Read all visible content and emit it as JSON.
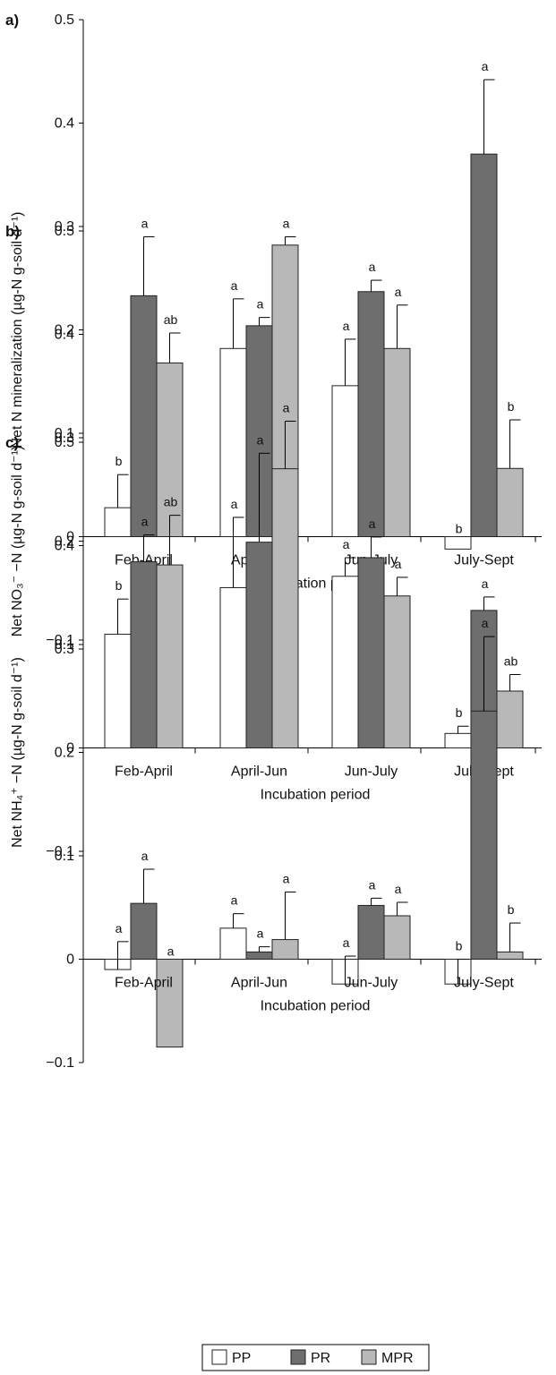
{
  "legend": {
    "items": [
      {
        "name": "PP",
        "color": "#ffffff"
      },
      {
        "name": "PR",
        "color": "#6e6e6e"
      },
      {
        "name": "MPR",
        "color": "#b8b8b8"
      }
    ]
  },
  "chart_data": [
    {
      "type": "bar",
      "panel": "a)",
      "xlabel": "Incubation period",
      "ylabel": "Net N mineralization (µg-N g-soil d⁻¹)",
      "ylim": [
        -0.1,
        0.5
      ],
      "yticks": [
        "0.5",
        "0.4",
        "0.3",
        "0.2",
        "0.1",
        "0",
        "−0.1"
      ],
      "categories": [
        "Feb-April",
        "April-Jun",
        "Jun-July",
        "July-Sept"
      ],
      "series": [
        {
          "name": "PP",
          "values": [
            0.028,
            0.182,
            0.146,
            -0.012
          ],
          "errors": [
            0.032,
            0.048,
            0.045,
            0
          ],
          "letters": [
            "b",
            "a",
            "a",
            "b"
          ]
        },
        {
          "name": "PR",
          "values": [
            0.233,
            0.204,
            0.237,
            0.37
          ],
          "errors": [
            0.057,
            0.008,
            0.011,
            0.072
          ],
          "letters": [
            "a",
            "a",
            "a",
            "a"
          ]
        },
        {
          "name": "MPR",
          "values": [
            0.168,
            0.282,
            0.182,
            0.066
          ],
          "errors": [
            0.029,
            0.008,
            0.042,
            0.047
          ],
          "letters": [
            "ab",
            "a",
            "a",
            "b"
          ]
        }
      ]
    },
    {
      "type": "bar",
      "panel": "b)",
      "xlabel": "Incubation period",
      "ylabel": "Net NO₃⁻ −N (µg-N g-soil d⁻¹)",
      "ylim": [
        -0.1,
        0.5
      ],
      "yticks": [
        "0.5",
        "0.4",
        "0.3",
        "0.2",
        "0.1",
        "0",
        "−0.1"
      ],
      "categories": [
        "Feb-April",
        "April-Jun",
        "Jun-July",
        "July-Sept"
      ],
      "series": [
        {
          "name": "PP",
          "values": [
            0.11,
            0.155,
            0.166,
            0.014
          ],
          "errors": [
            0.034,
            0.068,
            0.018,
            0.007
          ],
          "letters": [
            "b",
            "a",
            "a",
            "b"
          ]
        },
        {
          "name": "PR",
          "values": [
            0.18,
            0.199,
            0.184,
            0.133
          ],
          "errors": [
            0.026,
            0.086,
            0.02,
            0.013
          ],
          "letters": [
            "a",
            "a",
            "a",
            "a"
          ]
        },
        {
          "name": "MPR",
          "values": [
            0.177,
            0.27,
            0.147,
            0.055
          ],
          "errors": [
            0.048,
            0.046,
            0.018,
            0.016
          ],
          "letters": [
            "ab",
            "a",
            "a",
            "ab"
          ]
        }
      ]
    },
    {
      "type": "bar",
      "panel": "c)",
      "xlabel": "Incubation period",
      "ylabel": "Net NH₄⁺ −N (µg-N g-soil d⁻¹)",
      "ylim": [
        -0.1,
        0.5
      ],
      "yticks": [
        "0.5",
        "0.4",
        "0.3",
        "0.2",
        "0.1",
        "0",
        "−0.1"
      ],
      "categories": [
        "Feb-April",
        "April-Jun",
        "Jun-July",
        "July-Sept"
      ],
      "series": [
        {
          "name": "PP",
          "values": [
            -0.01,
            0.03,
            -0.024,
            -0.024
          ],
          "errors": [
            0.027,
            0.014,
            0.027,
            0.024
          ],
          "letters": [
            "a",
            "a",
            "a",
            "b"
          ]
        },
        {
          "name": "PR",
          "values": [
            0.054,
            0.007,
            0.052,
            0.24
          ],
          "errors": [
            0.033,
            0.005,
            0.007,
            0.072
          ],
          "letters": [
            "a",
            "a",
            "a",
            "a"
          ]
        },
        {
          "name": "MPR",
          "values": [
            -0.085,
            0.019,
            0.042,
            0.007
          ],
          "errors": [
            0.0,
            0.046,
            0.013,
            0.028
          ],
          "letters": [
            "a",
            "a",
            "a",
            "b"
          ]
        }
      ]
    }
  ]
}
